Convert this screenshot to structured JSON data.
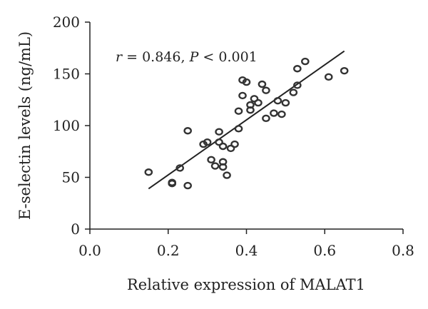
{
  "chart_data": {
    "type": "scatter",
    "title": "",
    "xlabel": "Relative expression of MALAT1",
    "ylabel": "E-selectin levels (ng/mL)",
    "xlim": [
      0.0,
      0.8
    ],
    "ylim": [
      0,
      200
    ],
    "xticks": [
      "0.0",
      "0.2",
      "0.4",
      "0.6",
      "0.8"
    ],
    "yticks": [
      "0",
      "50",
      "100",
      "150",
      "200"
    ],
    "grid": false,
    "legend": "none",
    "annotation": {
      "r_symbol": "r",
      "r_text": " = 0.846, ",
      "p_symbol": "P",
      "p_text": " < 0.001"
    },
    "points": [
      {
        "x": 0.15,
        "y": 55
      },
      {
        "x": 0.21,
        "y": 44
      },
      {
        "x": 0.21,
        "y": 45
      },
      {
        "x": 0.23,
        "y": 59
      },
      {
        "x": 0.25,
        "y": 42
      },
      {
        "x": 0.25,
        "y": 95
      },
      {
        "x": 0.29,
        "y": 82
      },
      {
        "x": 0.3,
        "y": 84
      },
      {
        "x": 0.31,
        "y": 67
      },
      {
        "x": 0.32,
        "y": 61
      },
      {
        "x": 0.33,
        "y": 94
      },
      {
        "x": 0.33,
        "y": 84
      },
      {
        "x": 0.34,
        "y": 65
      },
      {
        "x": 0.34,
        "y": 60
      },
      {
        "x": 0.34,
        "y": 80
      },
      {
        "x": 0.35,
        "y": 52
      },
      {
        "x": 0.36,
        "y": 78
      },
      {
        "x": 0.37,
        "y": 82
      },
      {
        "x": 0.38,
        "y": 97
      },
      {
        "x": 0.38,
        "y": 114
      },
      {
        "x": 0.39,
        "y": 129
      },
      {
        "x": 0.39,
        "y": 144
      },
      {
        "x": 0.4,
        "y": 142
      },
      {
        "x": 0.41,
        "y": 115
      },
      {
        "x": 0.41,
        "y": 120
      },
      {
        "x": 0.42,
        "y": 126
      },
      {
        "x": 0.43,
        "y": 122
      },
      {
        "x": 0.44,
        "y": 140
      },
      {
        "x": 0.45,
        "y": 134
      },
      {
        "x": 0.45,
        "y": 107
      },
      {
        "x": 0.47,
        "y": 112
      },
      {
        "x": 0.48,
        "y": 124
      },
      {
        "x": 0.49,
        "y": 111
      },
      {
        "x": 0.5,
        "y": 122
      },
      {
        "x": 0.52,
        "y": 132
      },
      {
        "x": 0.53,
        "y": 139
      },
      {
        "x": 0.53,
        "y": 155
      },
      {
        "x": 0.55,
        "y": 162
      },
      {
        "x": 0.61,
        "y": 147
      },
      {
        "x": 0.65,
        "y": 153
      }
    ],
    "regression_line": {
      "x": [
        0.15,
        0.65
      ],
      "y": [
        39,
        172
      ]
    },
    "colors": {
      "marker_stroke": "#333333",
      "line": "#222222",
      "axis": "#222222"
    }
  }
}
